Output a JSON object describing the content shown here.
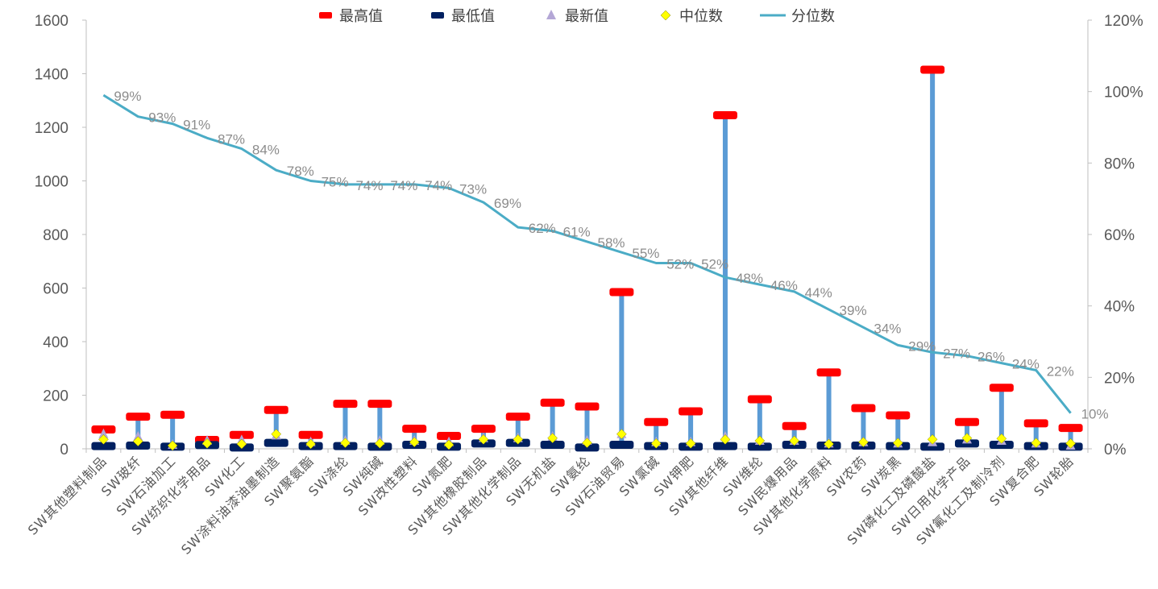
{
  "chart_data": {
    "type": "line",
    "legend": {
      "placement": "top",
      "entries": [
        {
          "key": "max",
          "label": "最高值",
          "color": "#ff0000",
          "marker": "dash"
        },
        {
          "key": "min",
          "label": "最低值",
          "color": "#002060",
          "marker": "dash"
        },
        {
          "key": "latest",
          "label": "最新值",
          "color": "#b4a7d6",
          "marker": "triangle"
        },
        {
          "key": "median",
          "label": "中位数",
          "color": "#ffff00",
          "marker": "diamond"
        },
        {
          "key": "pct",
          "label": "分位数",
          "color": "#4bacc6",
          "marker": "line"
        }
      ]
    },
    "left_axis": {
      "min": 0,
      "max": 1600,
      "ticks": [
        "0",
        "200",
        "400",
        "600",
        "800",
        "1000",
        "1200",
        "1400",
        "1600"
      ]
    },
    "right_axis": {
      "min": 0,
      "max": 1.2,
      "ticks": [
        "0%",
        "20%",
        "40%",
        "60%",
        "80%",
        "100%",
        "120%"
      ]
    },
    "range_color": "#5b9bd5",
    "series": [
      {
        "category": "SW其他塑料制品",
        "max": 72,
        "min": 10,
        "latest": 55,
        "median": 35,
        "pct": 0.99,
        "pct_label": "99%"
      },
      {
        "category": "SW玻纤",
        "max": 120,
        "min": 12,
        "latest": 45,
        "median": 28,
        "pct": 0.93,
        "pct_label": "93%"
      },
      {
        "category": "SW石油加工",
        "max": 127,
        "min": 8,
        "latest": 15,
        "median": 12,
        "pct": 0.91,
        "pct_label": "91%"
      },
      {
        "category": "SW纺织化学用品",
        "max": 33,
        "min": 14,
        "latest": 30,
        "median": 20,
        "pct": 0.87,
        "pct_label": "87%"
      },
      {
        "category": "SW化工",
        "max": 52,
        "min": 5,
        "latest": 32,
        "median": 18,
        "pct": 0.84,
        "pct_label": "84%"
      },
      {
        "category": "SW涂料油漆油墨制造",
        "max": 145,
        "min": 22,
        "latest": 50,
        "median": 55,
        "pct": 0.78,
        "pct_label": "78%"
      },
      {
        "category": "SW聚氨酯",
        "max": 52,
        "min": 10,
        "latest": 25,
        "median": 18,
        "pct": 0.75,
        "pct_label": "75%"
      },
      {
        "category": "SW涤纶",
        "max": 168,
        "min": 10,
        "latest": 30,
        "median": 22,
        "pct": 0.74,
        "pct_label": "74%"
      },
      {
        "category": "SW纯碱",
        "max": 168,
        "min": 8,
        "latest": 30,
        "median": 20,
        "pct": 0.74,
        "pct_label": "74%"
      },
      {
        "category": "SW改性塑料",
        "max": 75,
        "min": 15,
        "latest": 30,
        "median": 25,
        "pct": 0.74,
        "pct_label": "74%"
      },
      {
        "category": "SW氮肥",
        "max": 48,
        "min": 8,
        "latest": 25,
        "median": 15,
        "pct": 0.73,
        "pct_label": "73%"
      },
      {
        "category": "SW其他橡胶制品",
        "max": 75,
        "min": 20,
        "latest": 40,
        "median": 35,
        "pct": 0.69,
        "pct_label": "69%"
      },
      {
        "category": "SW其他化学制品",
        "max": 120,
        "min": 22,
        "latest": 40,
        "median": 35,
        "pct": 0.62,
        "pct_label": "62%"
      },
      {
        "category": "SW无机盐",
        "max": 172,
        "min": 15,
        "latest": 45,
        "median": 40,
        "pct": 0.61,
        "pct_label": "61%"
      },
      {
        "category": "SW氨纶",
        "max": 158,
        "min": 5,
        "latest": 30,
        "median": 22,
        "pct": 0.58,
        "pct_label": "58%"
      },
      {
        "category": "SW石油贸易",
        "max": 585,
        "min": 15,
        "latest": 55,
        "median": 55,
        "pct": 0.55,
        "pct_label": "55%"
      },
      {
        "category": "SW氯碱",
        "max": 100,
        "min": 10,
        "latest": 25,
        "median": 20,
        "pct": 0.52,
        "pct_label": "52%"
      },
      {
        "category": "SW钾肥",
        "max": 140,
        "min": 8,
        "latest": 25,
        "median": 20,
        "pct": 0.52,
        "pct_label": "52%"
      },
      {
        "category": "SW其他纤维",
        "max": 1245,
        "min": 10,
        "latest": 45,
        "median": 35,
        "pct": 0.48,
        "pct_label": "48%"
      },
      {
        "category": "SW维纶",
        "max": 185,
        "min": 8,
        "latest": 30,
        "median": 30,
        "pct": 0.46,
        "pct_label": "46%"
      },
      {
        "category": "SW民爆用品",
        "max": 85,
        "min": 15,
        "latest": 30,
        "median": 30,
        "pct": 0.44,
        "pct_label": "44%"
      },
      {
        "category": "SW其他化学原料",
        "max": 285,
        "min": 12,
        "latest": 20,
        "median": 18,
        "pct": 0.39,
        "pct_label": "39%"
      },
      {
        "category": "SW农药",
        "max": 152,
        "min": 12,
        "latest": 25,
        "median": 25,
        "pct": 0.34,
        "pct_label": "34%"
      },
      {
        "category": "SW炭黑",
        "max": 125,
        "min": 10,
        "latest": 20,
        "median": 22,
        "pct": 0.29,
        "pct_label": "29%"
      },
      {
        "category": "SW磷化工及磷酸盐",
        "max": 1415,
        "min": 8,
        "latest": 25,
        "median": 35,
        "pct": 0.27,
        "pct_label": "27%"
      },
      {
        "category": "SW日用化学产品",
        "max": 100,
        "min": 20,
        "latest": 35,
        "median": 40,
        "pct": 0.26,
        "pct_label": "26%"
      },
      {
        "category": "SW氟化工及制冷剂",
        "max": 228,
        "min": 15,
        "latest": 30,
        "median": 38,
        "pct": 0.24,
        "pct_label": "24%"
      },
      {
        "category": "SW复合肥",
        "max": 95,
        "min": 10,
        "latest": 20,
        "median": 22,
        "pct": 0.22,
        "pct_label": "22%"
      },
      {
        "category": "SW轮胎",
        "max": 78,
        "min": 8,
        "latest": 12,
        "median": 20,
        "pct": 0.1,
        "pct_label": "10%"
      }
    ]
  }
}
